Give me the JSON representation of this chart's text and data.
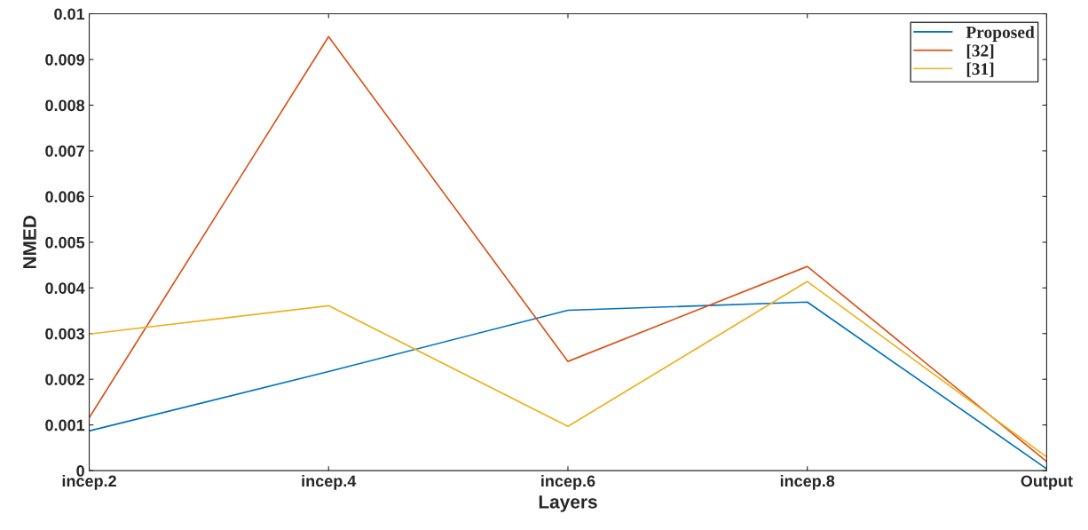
{
  "chart_data": {
    "type": "line",
    "xlabel": "Layers",
    "ylabel": "NMED",
    "categories": [
      "incep.2",
      "incep.4",
      "incep.6",
      "incep.8",
      "Output"
    ],
    "series": [
      {
        "name": "Proposed",
        "color": "#0072bd",
        "values": [
          0.00087,
          0.00217,
          0.00351,
          0.00369,
          4e-05
        ]
      },
      {
        "name": "[32]",
        "color": "#d95319",
        "values": [
          0.00116,
          0.0095,
          0.00239,
          0.00447,
          0.0002
        ]
      },
      {
        "name": "[31]",
        "color": "#edb120",
        "values": [
          0.00299,
          0.00361,
          0.00097,
          0.00414,
          0.0003
        ]
      }
    ],
    "ylim": [
      0,
      0.01
    ],
    "yticks": [
      0,
      0.001,
      0.002,
      0.003,
      0.004,
      0.005,
      0.006,
      0.007,
      0.008,
      0.009,
      0.01
    ],
    "grid": false,
    "legend": "top right",
    "marker": "none",
    "line_style": "solid"
  }
}
